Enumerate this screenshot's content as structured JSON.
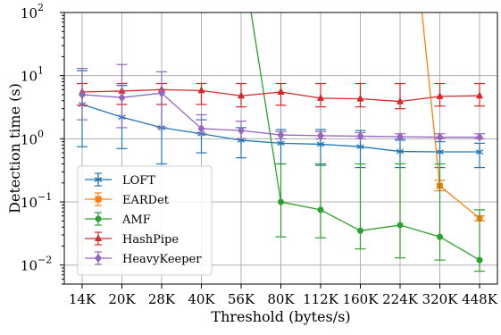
{
  "chart_data": {
    "type": "line",
    "title": "",
    "xlabel": "Threshold (bytes/s)",
    "ylabel": "Detection time (s)",
    "yscale": "log",
    "ylim": [
      0.005,
      100
    ],
    "grid": true,
    "legend_position": "lower-left",
    "categories": [
      "14K",
      "20K",
      "28K",
      "40K",
      "56K",
      "80K",
      "112K",
      "160K",
      "224K",
      "320K",
      "448K"
    ],
    "ytick_values": [
      0.01,
      0.1,
      1,
      10,
      100
    ],
    "ytick_labels": [
      "10",
      "10",
      "10",
      "10",
      "10"
    ],
    "ytick_exponents": [
      "−2",
      "−1",
      "0",
      "1",
      "2"
    ],
    "series": [
      {
        "name": "LOFT",
        "color": "#1f77b4",
        "marker": "star",
        "values": [
          3.5,
          2.2,
          1.5,
          1.2,
          0.95,
          0.85,
          0.82,
          0.75,
          0.63,
          0.62,
          0.62
        ],
        "err_low": [
          0.75,
          0.7,
          0.4,
          0.6,
          0.5,
          0.4,
          0.38,
          0.35,
          0.35,
          0.35,
          0.35
        ],
        "err_high": [
          12.0,
          7.0,
          6.0,
          2.0,
          1.5,
          1.4,
          1.4,
          1.35,
          0.95,
          0.9,
          0.85
        ]
      },
      {
        "name": "EARDet",
        "color": "#ff7f0e",
        "marker": "square",
        "values": [
          null,
          null,
          null,
          null,
          null,
          null,
          null,
          null,
          null,
          0.18,
          0.055
        ],
        "err_low": [
          null,
          null,
          null,
          null,
          null,
          null,
          null,
          null,
          null,
          0.15,
          0.05
        ],
        "err_high": [
          null,
          null,
          null,
          null,
          null,
          null,
          null,
          null,
          null,
          0.22,
          0.06
        ],
        "note_line_from": [
          8.55,
          100
        ]
      },
      {
        "name": "AMF",
        "color": "#2ca02c",
        "marker": "circle",
        "values": [
          null,
          null,
          null,
          null,
          null,
          0.1,
          0.075,
          0.035,
          0.043,
          0.028,
          0.012
        ],
        "err_low": [
          null,
          null,
          null,
          null,
          null,
          0.028,
          0.027,
          0.018,
          0.013,
          0.012,
          0.008
        ],
        "err_high": [
          null,
          null,
          null,
          null,
          null,
          0.4,
          0.4,
          0.4,
          0.4,
          0.4,
          0.075
        ],
        "note_line_from": [
          4.25,
          100
        ]
      },
      {
        "name": "HashPipe",
        "color": "#d62728",
        "marker": "triangle",
        "values": [
          5.5,
          5.7,
          6.0,
          5.8,
          4.8,
          5.5,
          4.4,
          4.3,
          3.9,
          4.7,
          4.8
        ],
        "err_low": [
          3.4,
          3.5,
          3.5,
          3.5,
          3.2,
          3.4,
          3.2,
          3.2,
          3.0,
          3.3,
          3.3
        ],
        "err_high": [
          7.5,
          7.5,
          7.5,
          7.5,
          7.5,
          7.5,
          7.5,
          7.5,
          7.5,
          7.5,
          7.5
        ]
      },
      {
        "name": "HeavyKeeper",
        "color": "#9467bd",
        "marker": "diamond",
        "values": [
          5.0,
          4.5,
          5.3,
          1.45,
          1.35,
          1.15,
          1.12,
          1.1,
          1.08,
          1.06,
          1.06
        ],
        "err_low": [
          2.0,
          1.5,
          1.5,
          1.2,
          1.0,
          1.0,
          1.0,
          1.0,
          1.0,
          1.0,
          1.0
        ],
        "err_high": [
          13.0,
          15.0,
          11.5,
          2.4,
          1.9,
          1.3,
          1.3,
          1.25,
          1.2,
          1.2,
          1.2
        ]
      }
    ]
  }
}
